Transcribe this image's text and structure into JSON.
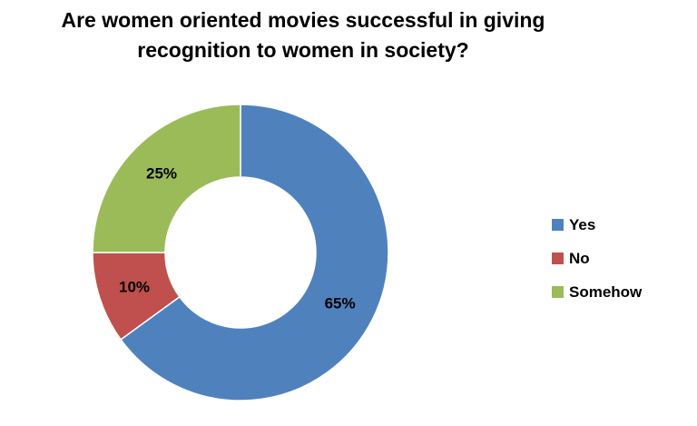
{
  "chart_data": {
    "type": "pie",
    "variant": "donut",
    "title": [
      "Are women oriented movies successful in giving",
      "recognition to women in society?"
    ],
    "categories": [
      "Yes",
      "No",
      "Somehow"
    ],
    "values": [
      65,
      10,
      25
    ],
    "data_labels": [
      "65%",
      "10%",
      "25%"
    ],
    "colors": [
      "#4F81BD",
      "#C0504D",
      "#9BBB59"
    ],
    "legend_position": "right"
  }
}
